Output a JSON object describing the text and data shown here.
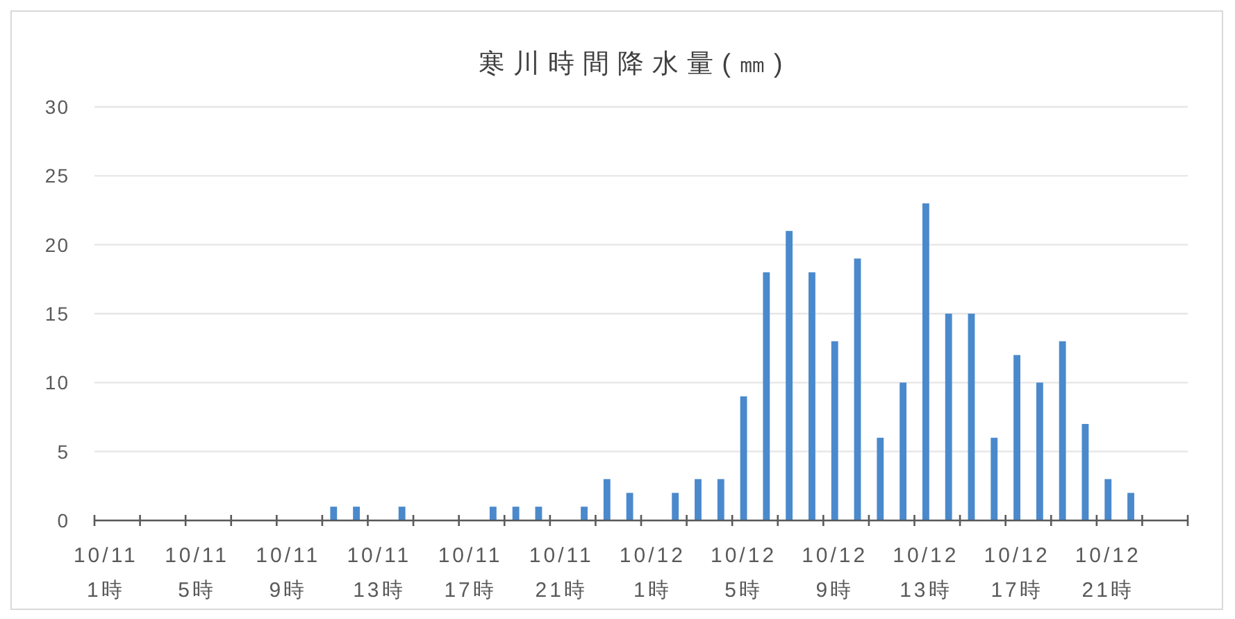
{
  "chart_data": {
    "type": "bar",
    "title": "寒川時間降水量(㎜)",
    "categories": [
      "10/11 1時",
      null,
      null,
      null,
      "10/11 5時",
      null,
      null,
      null,
      "10/11 9時",
      null,
      null,
      null,
      "10/11 13時",
      null,
      null,
      null,
      "10/11 17時",
      null,
      null,
      null,
      "10/11 21時",
      null,
      null,
      null,
      "10/12 1時",
      null,
      null,
      null,
      "10/12 5時",
      null,
      null,
      null,
      "10/12 9時",
      null,
      null,
      null,
      "10/12 13時",
      null,
      null,
      null,
      "10/12 17時",
      null,
      null,
      null,
      "10/12 21時",
      null,
      null,
      null
    ],
    "values": [
      0,
      0,
      0,
      0,
      0,
      0,
      0,
      0,
      0,
      0,
      1,
      1,
      0,
      1,
      0,
      0,
      0,
      1,
      1,
      1,
      0,
      1,
      3,
      2,
      0,
      2,
      3,
      3,
      9,
      18,
      21,
      18,
      13,
      19,
      6,
      10,
      23,
      15,
      15,
      6,
      12,
      10,
      13,
      7,
      3,
      2,
      0,
      0
    ],
    "color": "#4a89cc",
    "ylim": [
      0,
      30
    ],
    "yticks": [
      0,
      5,
      10,
      15,
      20,
      25,
      30
    ],
    "grid": "y"
  }
}
